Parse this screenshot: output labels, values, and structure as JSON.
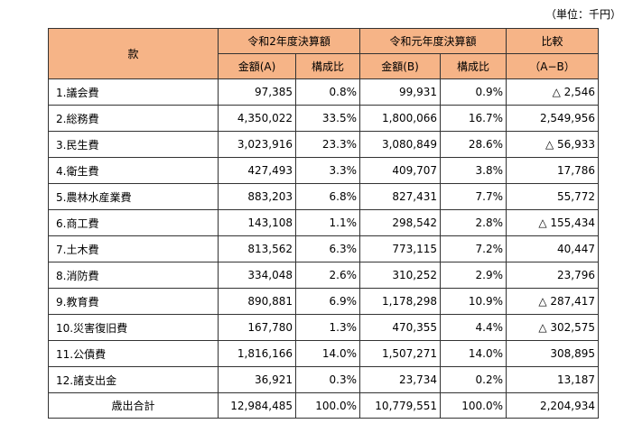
{
  "unit_note": "（単位：千円）",
  "header": {
    "col_item": "款",
    "col_r2": "令和2年度決算額",
    "col_r1": "令和元年度決算額",
    "col_compare": "比較",
    "sub_amount_a": "金額(A)",
    "sub_ratio_a": "構成比",
    "sub_amount_b": "金額(B)",
    "sub_ratio_b": "構成比",
    "sub_diff": "（A−B）"
  },
  "rows": [
    {
      "name": "1.議会費",
      "a": "97,385",
      "ra": "0.8%",
      "b": "99,931",
      "rb": "0.9%",
      "diff": "△ 2,546"
    },
    {
      "name": "2.総務費",
      "a": "4,350,022",
      "ra": "33.5%",
      "b": "1,800,066",
      "rb": "16.7%",
      "diff": "2,549,956"
    },
    {
      "name": "3.民生費",
      "a": "3,023,916",
      "ra": "23.3%",
      "b": "3,080,849",
      "rb": "28.6%",
      "diff": "△ 56,933"
    },
    {
      "name": "4.衛生費",
      "a": "427,493",
      "ra": "3.3%",
      "b": "409,707",
      "rb": "3.8%",
      "diff": "17,786"
    },
    {
      "name": "5.農林水産業費",
      "a": "883,203",
      "ra": "6.8%",
      "b": "827,431",
      "rb": "7.7%",
      "diff": "55,772"
    },
    {
      "name": "6.商工費",
      "a": "143,108",
      "ra": "1.1%",
      "b": "298,542",
      "rb": "2.8%",
      "diff": "△ 155,434"
    },
    {
      "name": "7.土木費",
      "a": "813,562",
      "ra": "6.3%",
      "b": "773,115",
      "rb": "7.2%",
      "diff": "40,447"
    },
    {
      "name": "8.消防費",
      "a": "334,048",
      "ra": "2.6%",
      "b": "310,252",
      "rb": "2.9%",
      "diff": "23,796"
    },
    {
      "name": "9.教育費",
      "a": "890,881",
      "ra": "6.9%",
      "b": "1,178,298",
      "rb": "10.9%",
      "diff": "△ 287,417"
    },
    {
      "name": "10.災害復旧費",
      "a": "167,780",
      "ra": "1.3%",
      "b": "470,355",
      "rb": "4.4%",
      "diff": "△ 302,575"
    },
    {
      "name": "11.公債費",
      "a": "1,816,166",
      "ra": "14.0%",
      "b": "1,507,271",
      "rb": "14.0%",
      "diff": "308,895"
    },
    {
      "name": "12.諸支出金",
      "a": "36,921",
      "ra": "0.3%",
      "b": "23,734",
      "rb": "0.2%",
      "diff": "13,187"
    }
  ],
  "total": {
    "name": "歳出合計",
    "a": "12,984,485",
    "ra": "100.0%",
    "b": "10,779,551",
    "rb": "100.0%",
    "diff": "2,204,934"
  },
  "colors": {
    "header_bg": "#f6b487",
    "border": "#333333"
  }
}
